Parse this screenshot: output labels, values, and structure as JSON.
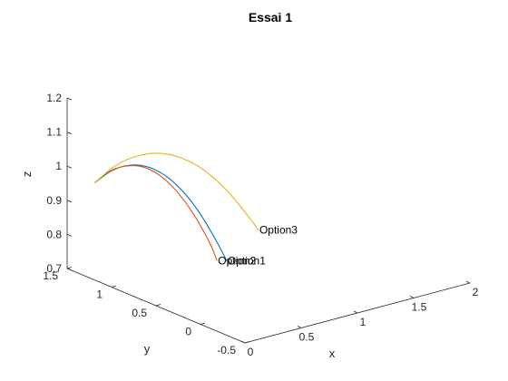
{
  "chart_data": {
    "type": "line3d",
    "title": "Essai 1",
    "xlabel": "x",
    "ylabel": "y",
    "zlabel": "z",
    "xlim": [
      0,
      2
    ],
    "ylim": [
      -0.5,
      1.5
    ],
    "zlim": [
      0.7,
      1.2
    ],
    "xticks": [
      {
        "value": 0,
        "label": "0"
      },
      {
        "value": 0.5,
        "label": "0.5"
      },
      {
        "value": 1,
        "label": "1"
      },
      {
        "value": 1.5,
        "label": "1.5"
      },
      {
        "value": 2,
        "label": "2"
      }
    ],
    "yticks": [
      {
        "value": -0.5,
        "label": "-0.5"
      },
      {
        "value": 0,
        "label": "0"
      },
      {
        "value": 0.5,
        "label": "0.5"
      },
      {
        "value": 1,
        "label": "1"
      },
      {
        "value": 1.5,
        "label": "1.5"
      }
    ],
    "zticks": [
      {
        "value": 0.7,
        "label": "0.7"
      },
      {
        "value": 0.8,
        "label": "0.8"
      },
      {
        "value": 0.9,
        "label": "0.9"
      },
      {
        "value": 1,
        "label": "1"
      },
      {
        "value": 1.1,
        "label": "1.1"
      },
      {
        "value": 1.2,
        "label": "1.2"
      }
    ],
    "grid": false,
    "series": [
      {
        "name": "Option1",
        "color": "#0072BD",
        "points": [
          [
            0.006,
            1.2,
            0.983
          ],
          [
            0.09,
            1.108,
            1.022
          ],
          [
            0.17,
            1.013,
            1.041
          ],
          [
            0.25,
            0.918,
            1.04
          ],
          [
            0.33,
            0.825,
            1.019
          ],
          [
            0.41,
            0.732,
            0.978
          ],
          [
            0.49,
            0.638,
            0.917
          ],
          [
            0.57,
            0.545,
            0.836
          ],
          [
            0.62,
            0.49,
            0.778
          ]
        ],
        "label": "Option1"
      },
      {
        "name": "Option2",
        "color": "#D95319",
        "points": [
          [
            0.006,
            1.2,
            0.983
          ],
          [
            0.08,
            1.115,
            1.021
          ],
          [
            0.155,
            1.025,
            1.039
          ],
          [
            0.235,
            0.935,
            1.038
          ],
          [
            0.31,
            0.845,
            1.016
          ],
          [
            0.385,
            0.755,
            0.974
          ],
          [
            0.46,
            0.665,
            0.912
          ],
          [
            0.535,
            0.575,
            0.83
          ],
          [
            0.57,
            0.535,
            0.778
          ]
        ],
        "label": "Option2"
      },
      {
        "name": "Option3",
        "color": "#EDB120",
        "points": [
          [
            0.006,
            1.2,
            0.983
          ],
          [
            0.11,
            1.095,
            1.036
          ],
          [
            0.22,
            0.985,
            1.067
          ],
          [
            0.33,
            0.875,
            1.077
          ],
          [
            0.44,
            0.765,
            1.065
          ],
          [
            0.55,
            0.655,
            1.032
          ],
          [
            0.66,
            0.545,
            0.977
          ],
          [
            0.77,
            0.435,
            0.901
          ],
          [
            0.82,
            0.385,
            0.862
          ]
        ],
        "label": "Option3"
      }
    ]
  }
}
